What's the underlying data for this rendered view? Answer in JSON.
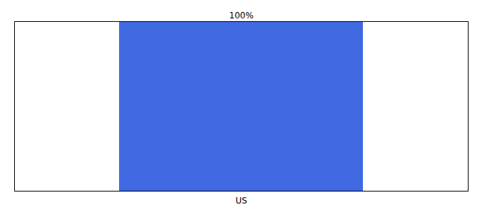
{
  "chart_data": {
    "type": "bar",
    "categories": [
      "US"
    ],
    "values": [
      100
    ],
    "value_labels": [
      "100%"
    ],
    "data_labels": true,
    "color": "#4169e1",
    "ylim": [
      0,
      100
    ],
    "yticks": [],
    "tick_labels": "x",
    "grid": false
  }
}
